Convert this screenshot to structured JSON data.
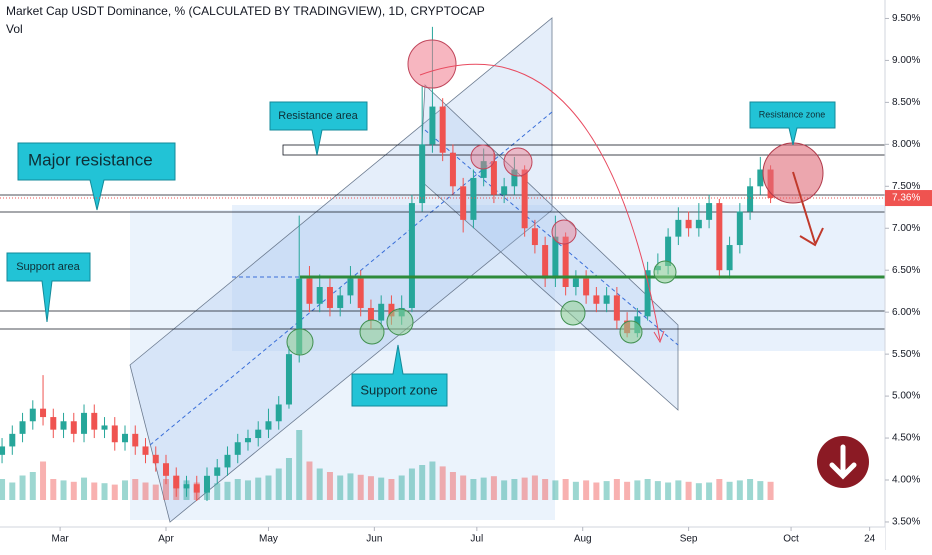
{
  "chart_data": {
    "type": "candlestick",
    "title": "Market Cap USDT Dominance, % (CALCULATED BY TRADINGVIEW), 1D, CRYPTOCAP",
    "volume_label": "Vol",
    "annotations": [
      "Major resistance",
      "Resistance area",
      "Support area",
      "Support zone",
      "Resistance zone"
    ],
    "last_price": {
      "value": 7.36,
      "label": "7.36%"
    },
    "up_color": "#26a69a",
    "down_color": "#ef5350",
    "xlim": [
      -17.6,
      241.5
    ],
    "xticks": [
      {
        "value": 0,
        "label": "Mar"
      },
      {
        "value": 31,
        "label": "Apr"
      },
      {
        "value": 61,
        "label": "May"
      },
      {
        "value": 92,
        "label": "Jun"
      },
      {
        "value": 122,
        "label": "Jul"
      },
      {
        "value": 153,
        "label": "Aug"
      },
      {
        "value": 184,
        "label": "Sep"
      },
      {
        "value": 214,
        "label": "Oct"
      },
      {
        "value": 237,
        "label": "24"
      }
    ],
    "ylim": [
      3.44,
      9.72
    ],
    "yticks": [
      {
        "value": 3.5,
        "label": "3.50%"
      },
      {
        "value": 4,
        "label": "4.00%"
      },
      {
        "value": 4.5,
        "label": "4.50%"
      },
      {
        "value": 5,
        "label": "5.00%"
      },
      {
        "value": 5.5,
        "label": "5.50%"
      },
      {
        "value": 6,
        "label": "6.00%"
      },
      {
        "value": 6.5,
        "label": "6.50%"
      },
      {
        "value": 7,
        "label": "7.00%"
      },
      {
        "value": 7.5,
        "label": "7.50%"
      },
      {
        "value": 8,
        "label": "8.00%"
      },
      {
        "value": 8.5,
        "label": "8.50%"
      },
      {
        "value": 9,
        "label": "9.00%"
      },
      {
        "value": 9.5,
        "label": "9.50%"
      }
    ],
    "vlim": [
      0,
      100
    ],
    "x": [
      -17,
      -14,
      -11,
      -8,
      -5,
      -2,
      1,
      4,
      7,
      10,
      13,
      16,
      19,
      22,
      25,
      28,
      31,
      34,
      37,
      40,
      43,
      46,
      49,
      52,
      55,
      58,
      61,
      64,
      67,
      70,
      73,
      76,
      79,
      82,
      85,
      88,
      91,
      94,
      97,
      100,
      103,
      106,
      109,
      112,
      115,
      118,
      121,
      124,
      127,
      130,
      133,
      136,
      139,
      142,
      145,
      148,
      151,
      154,
      157,
      160,
      163,
      166,
      169,
      172,
      175,
      178,
      181,
      184,
      187,
      190,
      193,
      196,
      199,
      202,
      205,
      208
    ],
    "open": [
      4.3,
      4.4,
      4.55,
      4.7,
      4.85,
      4.75,
      4.6,
      4.7,
      4.55,
      4.8,
      4.6,
      4.65,
      4.45,
      4.55,
      4.4,
      4.3,
      4.2,
      4.05,
      3.9,
      3.95,
      3.85,
      4.05,
      4.15,
      4.3,
      4.45,
      4.5,
      4.6,
      4.7,
      4.9,
      5.5,
      6.4,
      6.1,
      6.3,
      6.05,
      6.2,
      6.4,
      6.05,
      5.9,
      6.1,
      5.95,
      6.05,
      7.3,
      8.0,
      8.45,
      7.9,
      7.5,
      7.1,
      7.6,
      7.8,
      7.4,
      7.5,
      7.7,
      7.0,
      6.8,
      6.4,
      6.9,
      6.3,
      6.4,
      6.2,
      6.1,
      6.2,
      5.9,
      5.75,
      5.95,
      6.5,
      6.55,
      6.9,
      7.1,
      7.0,
      7.1,
      7.3,
      6.5,
      6.8,
      7.2,
      7.5,
      7.7
    ],
    "high": [
      4.5,
      4.65,
      4.8,
      4.95,
      5.25,
      4.85,
      4.8,
      4.8,
      4.9,
      4.9,
      4.75,
      4.75,
      4.65,
      4.65,
      4.5,
      4.4,
      4.3,
      4.15,
      4.05,
      4.05,
      4.15,
      4.25,
      4.4,
      4.55,
      4.6,
      4.7,
      4.85,
      5.0,
      5.6,
      7.15,
      6.55,
      6.45,
      6.4,
      6.3,
      6.55,
      6.5,
      6.15,
      6.2,
      6.2,
      6.2,
      7.4,
      8.7,
      9.4,
      8.55,
      8.0,
      7.6,
      7.7,
      7.95,
      7.9,
      7.6,
      7.85,
      7.75,
      7.1,
      6.9,
      7.15,
      6.95,
      6.5,
      6.5,
      6.3,
      6.3,
      6.3,
      6.0,
      6.05,
      6.6,
      6.7,
      7.0,
      7.25,
      7.2,
      7.3,
      7.4,
      7.35,
      6.9,
      7.3,
      7.6,
      7.85,
      7.75
    ],
    "low": [
      4.2,
      4.3,
      4.45,
      4.6,
      4.65,
      4.5,
      4.5,
      4.45,
      4.45,
      4.5,
      4.5,
      4.35,
      4.35,
      4.3,
      4.2,
      4.1,
      3.95,
      3.8,
      3.8,
      3.75,
      3.75,
      3.95,
      4.05,
      4.2,
      4.35,
      4.4,
      4.5,
      4.6,
      4.85,
      5.4,
      6.0,
      6.0,
      5.95,
      5.95,
      6.1,
      5.95,
      5.8,
      5.8,
      5.85,
      5.85,
      6.0,
      7.2,
      7.9,
      7.8,
      7.4,
      6.95,
      7.0,
      7.5,
      7.3,
      7.3,
      7.4,
      6.9,
      6.7,
      6.3,
      6.3,
      6.2,
      6.2,
      6.1,
      6.0,
      6.0,
      5.8,
      5.7,
      5.7,
      5.9,
      6.45,
      6.45,
      6.8,
      6.9,
      6.9,
      7.0,
      6.4,
      6.4,
      6.7,
      7.1,
      7.4,
      7.3
    ],
    "close": [
      4.4,
      4.55,
      4.7,
      4.85,
      4.75,
      4.6,
      4.7,
      4.55,
      4.8,
      4.6,
      4.65,
      4.45,
      4.55,
      4.4,
      4.3,
      4.2,
      4.05,
      3.9,
      3.95,
      3.85,
      4.05,
      4.15,
      4.3,
      4.45,
      4.5,
      4.6,
      4.7,
      4.9,
      5.5,
      6.4,
      6.1,
      6.3,
      6.05,
      6.2,
      6.4,
      6.05,
      5.9,
      6.1,
      5.95,
      6.05,
      7.3,
      8.0,
      8.45,
      7.9,
      7.5,
      7.1,
      7.6,
      7.8,
      7.4,
      7.5,
      7.7,
      7.0,
      6.8,
      6.4,
      6.9,
      6.3,
      6.4,
      6.2,
      6.1,
      6.2,
      5.9,
      5.75,
      5.95,
      6.5,
      6.55,
      6.9,
      7.1,
      7.0,
      7.1,
      7.3,
      6.5,
      6.8,
      7.2,
      7.5,
      7.7,
      7.36
    ],
    "volume": [
      30,
      25,
      35,
      40,
      55,
      30,
      28,
      26,
      32,
      25,
      24,
      22,
      28,
      30,
      25,
      22,
      30,
      35,
      28,
      25,
      22,
      24,
      26,
      30,
      28,
      32,
      35,
      45,
      60,
      100,
      55,
      45,
      40,
      35,
      38,
      36,
      34,
      32,
      30,
      35,
      45,
      50,
      55,
      48,
      40,
      35,
      30,
      32,
      34,
      28,
      30,
      32,
      35,
      30,
      28,
      30,
      26,
      28,
      25,
      27,
      30,
      26,
      28,
      30,
      27,
      25,
      28,
      26,
      24,
      25,
      30,
      26,
      28,
      30,
      27,
      26
    ]
  }
}
